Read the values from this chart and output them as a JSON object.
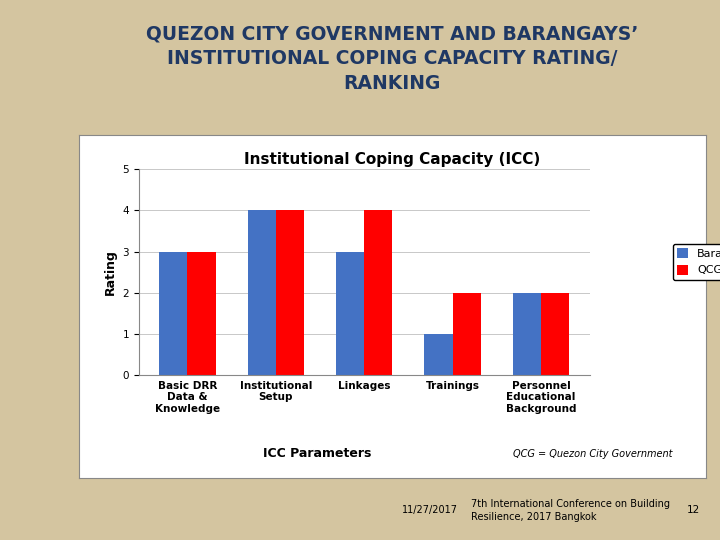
{
  "title_line1": "QUEZON CITY GOVERNMENT AND BARANGAYS’",
  "title_line2": "INSTITUTIONAL COPING CAPACITY RATING/",
  "title_line3": "RANKING",
  "chart_title": "Institutional Coping Capacity (ICC)",
  "categories": [
    "Basic DRR\nData &\nKnowledge",
    "Institutional\nSetup",
    "Linkages",
    "Trainings",
    "Personnel\nEducational\nBackground"
  ],
  "barangay_values": [
    3,
    4,
    3,
    1,
    2
  ],
  "qcg_values": [
    3,
    4,
    4,
    2,
    2
  ],
  "barangay_color": "#4472C4",
  "qcg_color": "#FF0000",
  "ylabel": "Rating",
  "xlabel": "ICC Parameters",
  "ylim": [
    0,
    5
  ],
  "yticks": [
    0,
    1,
    2,
    3,
    4,
    5
  ],
  "legend_labels": [
    "Barangay",
    "QCG"
  ],
  "note_text": "QCG = Quezon City Government",
  "footer_date": "11/27/2017",
  "footer_conf": "7th International Conference on Building\nResilience, 2017 Bangkok",
  "footer_page": "12",
  "slide_bg": "#D4C5A0",
  "left_strip_color": "#C8BA90",
  "chart_bg": "#FFFFFF",
  "title_color": "#1F3864",
  "bar_width": 0.32,
  "title_fontsize": 13.5,
  "chart_title_fontsize": 11,
  "axis_label_fontsize": 9,
  "tick_fontsize": 7.5,
  "legend_fontsize": 8,
  "footer_fontsize": 7
}
